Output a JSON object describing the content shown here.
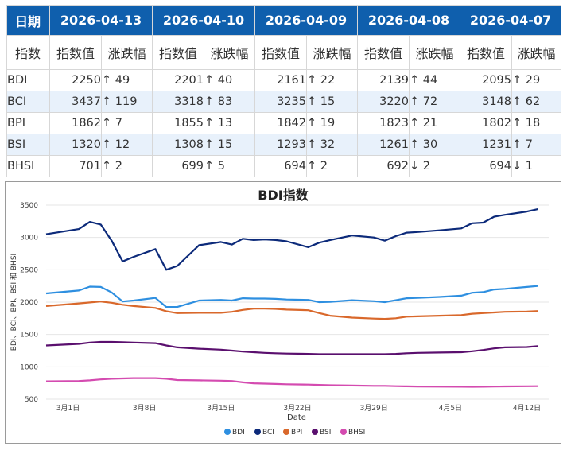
{
  "table": {
    "corner": "日期",
    "dates": [
      "2026-04-13",
      "2026-04-10",
      "2026-04-09",
      "2026-04-08",
      "2026-04-07"
    ],
    "sub_index": "指数",
    "sub_value": "指数值",
    "sub_change": "涨跌幅",
    "rows": [
      {
        "name": "BDI",
        "cells": [
          {
            "v": "2250",
            "c": "↑ 49",
            "d": "up"
          },
          {
            "v": "2201",
            "c": "↑ 40",
            "d": "up"
          },
          {
            "v": "2161",
            "c": "↑ 22",
            "d": "up"
          },
          {
            "v": "2139",
            "c": "↑ 44",
            "d": "up"
          },
          {
            "v": "2095",
            "c": "↑ 29",
            "d": "up"
          }
        ]
      },
      {
        "name": "BCI",
        "cells": [
          {
            "v": "3437",
            "c": "↑ 119",
            "d": "up"
          },
          {
            "v": "3318",
            "c": "↑ 83",
            "d": "up"
          },
          {
            "v": "3235",
            "c": "↑ 15",
            "d": "up"
          },
          {
            "v": "3220",
            "c": "↑ 72",
            "d": "up"
          },
          {
            "v": "3148",
            "c": "↑ 62",
            "d": "up"
          }
        ]
      },
      {
        "name": "BPI",
        "cells": [
          {
            "v": "1862",
            "c": "↑ 7",
            "d": "up"
          },
          {
            "v": "1855",
            "c": "↑ 13",
            "d": "up"
          },
          {
            "v": "1842",
            "c": "↑ 19",
            "d": "up"
          },
          {
            "v": "1823",
            "c": "↑ 21",
            "d": "up"
          },
          {
            "v": "1802",
            "c": "↑ 18",
            "d": "up"
          }
        ]
      },
      {
        "name": "BSI",
        "cells": [
          {
            "v": "1320",
            "c": "↑ 12",
            "d": "up"
          },
          {
            "v": "1308",
            "c": "↑ 15",
            "d": "up"
          },
          {
            "v": "1293",
            "c": "↑ 32",
            "d": "up"
          },
          {
            "v": "1261",
            "c": "↑ 30",
            "d": "up"
          },
          {
            "v": "1231",
            "c": "↑ 7",
            "d": "up"
          }
        ]
      },
      {
        "name": "BHSI",
        "cells": [
          {
            "v": "701",
            "c": "↑ 2",
            "d": "up"
          },
          {
            "v": "699",
            "c": "↑ 5",
            "d": "up"
          },
          {
            "v": "694",
            "c": "↑ 2",
            "d": "up"
          },
          {
            "v": "692",
            "c": "↓ 2",
            "d": "down"
          },
          {
            "v": "694",
            "c": "↓ 1",
            "d": "down"
          }
        ]
      }
    ],
    "colors": {
      "header_bg": "#0f5fad",
      "alt_row": "#e8f1fb",
      "up": "#1f9e3a",
      "down": "#e0752a"
    }
  },
  "chart_data": {
    "type": "line",
    "title": "BDI指数",
    "xlabel": "Date",
    "ylabel": "BDI、BCI、BPI、BSI 和 BHSI",
    "ylim": [
      500,
      3500
    ],
    "yticks": [
      500,
      1000,
      1500,
      2000,
      2500,
      3000,
      3500
    ],
    "xlim": [
      0,
      46
    ],
    "xticks": [
      {
        "x": 2,
        "label": "3月1日"
      },
      {
        "x": 9,
        "label": "3月8日"
      },
      {
        "x": 16,
        "label": "3月15日"
      },
      {
        "x": 23,
        "label": "3月22日"
      },
      {
        "x": 30,
        "label": "3月29日"
      },
      {
        "x": 37,
        "label": "4月5日"
      },
      {
        "x": 44,
        "label": "4月12日"
      }
    ],
    "x": [
      0,
      3,
      4,
      5,
      6,
      7,
      8,
      10,
      11,
      12,
      14,
      16,
      17,
      18,
      19,
      20,
      21,
      22,
      24,
      25,
      26,
      28,
      30,
      31,
      32,
      33,
      34,
      36,
      38,
      39,
      40,
      41,
      42,
      44,
      45
    ],
    "series": [
      {
        "name": "BDI",
        "color": "#2e8fe0",
        "values": [
          2135,
          2180,
          2240,
          2235,
          2150,
          2010,
          2025,
          2065,
          1925,
          1925,
          2025,
          2035,
          2025,
          2060,
          2055,
          2055,
          2050,
          2040,
          2035,
          2000,
          2005,
          2030,
          2015,
          2000,
          2030,
          2060,
          2065,
          2080,
          2100,
          2145,
          2155,
          2195,
          2205,
          2235,
          2250
        ]
      },
      {
        "name": "BCI",
        "color": "#0c2a7a",
        "values": [
          3050,
          3130,
          3240,
          3200,
          2950,
          2630,
          2700,
          2820,
          2500,
          2560,
          2880,
          2930,
          2890,
          2980,
          2960,
          2970,
          2960,
          2940,
          2850,
          2920,
          2960,
          3030,
          3000,
          2950,
          3020,
          3075,
          3085,
          3110,
          3140,
          3220,
          3230,
          3320,
          3350,
          3400,
          3437
        ]
      },
      {
        "name": "BPI",
        "color": "#d9682b",
        "values": [
          1940,
          1980,
          1995,
          2010,
          1990,
          1960,
          1940,
          1910,
          1860,
          1830,
          1835,
          1835,
          1850,
          1880,
          1900,
          1900,
          1895,
          1885,
          1875,
          1830,
          1790,
          1760,
          1745,
          1740,
          1750,
          1775,
          1780,
          1790,
          1800,
          1820,
          1830,
          1840,
          1850,
          1855,
          1862
        ]
      },
      {
        "name": "BSI",
        "color": "#5a0f6e",
        "values": [
          1330,
          1355,
          1375,
          1385,
          1385,
          1380,
          1375,
          1365,
          1330,
          1300,
          1280,
          1265,
          1250,
          1235,
          1225,
          1215,
          1210,
          1205,
          1200,
          1195,
          1195,
          1195,
          1195,
          1195,
          1200,
          1210,
          1215,
          1220,
          1225,
          1240,
          1260,
          1285,
          1300,
          1305,
          1320
        ]
      },
      {
        "name": "BHSI",
        "color": "#d44bb0",
        "values": [
          775,
          780,
          790,
          805,
          815,
          820,
          825,
          825,
          815,
          795,
          790,
          785,
          780,
          760,
          745,
          740,
          735,
          730,
          725,
          720,
          715,
          710,
          705,
          705,
          700,
          698,
          695,
          693,
          692,
          690,
          692,
          694,
          697,
          699,
          701
        ]
      }
    ]
  }
}
